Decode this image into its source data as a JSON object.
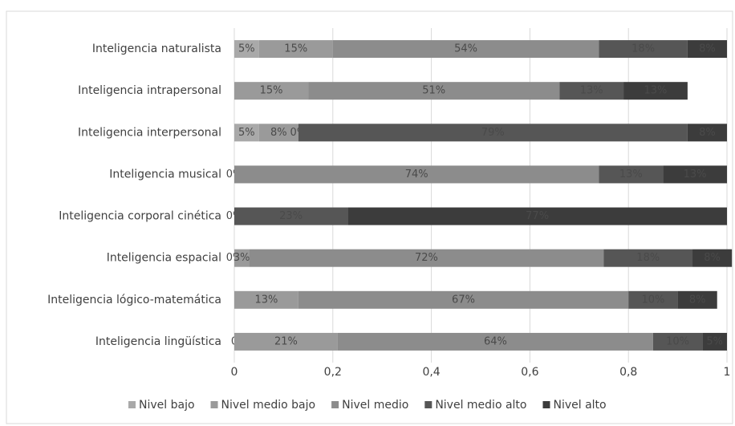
{
  "chart_data": {
    "type": "stacked_bar_horizontal",
    "categories": [
      "Inteligencia naturalista",
      "Inteligencia intrapersonal",
      "Inteligencia interpersonal",
      "Inteligencia musical",
      "Inteligencia corporal cinética",
      "Inteligencia espacial",
      "Inteligencia lógico-matemática",
      "Inteligencia lingüística"
    ],
    "series": [
      {
        "name": "Nivel bajo",
        "color": "#a9a9a9",
        "values": [
          0.05,
          0,
          0.05,
          0,
          0,
          0,
          0,
          0
        ],
        "value_labels": [
          "5%",
          null,
          "5%",
          "0%",
          "0%",
          "0%",
          null,
          "0"
        ]
      },
      {
        "name": "Nivel medio bajo",
        "color": "#9a9a9a",
        "values": [
          0.15,
          0.15,
          0.08,
          0,
          0,
          0.03,
          0.13,
          0.21
        ],
        "value_labels": [
          "15%",
          "15%",
          "8%",
          null,
          null,
          "3%",
          "13%",
          "21%"
        ]
      },
      {
        "name": "Nivel medio",
        "color": "#8c8c8c",
        "values": [
          0.54,
          0.51,
          0,
          0.74,
          0,
          0.72,
          0.67,
          0.64
        ],
        "value_labels": [
          "54%",
          "51%",
          "0%",
          "74%",
          null,
          "72%",
          "67%",
          "64%"
        ]
      },
      {
        "name": "Nivel medio alto",
        "color": "#565656",
        "values": [
          0.18,
          0.13,
          0.79,
          0.13,
          0.23,
          0.18,
          0.1,
          0.1
        ],
        "value_labels": [
          "18%",
          "13%",
          "79%",
          "13%",
          "23%",
          "18%",
          "10%",
          "10%"
        ]
      },
      {
        "name": "Nivel alto",
        "color": "#3c3c3c",
        "values": [
          0.08,
          0.13,
          0.08,
          0.13,
          0.77,
          0.08,
          0.08,
          0.05
        ],
        "value_labels": [
          "8%",
          "13%",
          "8%",
          "13%",
          "77%",
          "8%",
          "8%",
          "5%"
        ]
      }
    ],
    "xlim": [
      0,
      1
    ],
    "xticks": [
      0,
      {
        "value": 0.2,
        "label": "0,2"
      },
      {
        "value": 0.4,
        "label": "0,4"
      },
      {
        "value": 0.6,
        "label": "0,6"
      },
      {
        "value": 0.8,
        "label": "0,8"
      },
      1
    ],
    "grid": true,
    "legend": "bottom"
  }
}
